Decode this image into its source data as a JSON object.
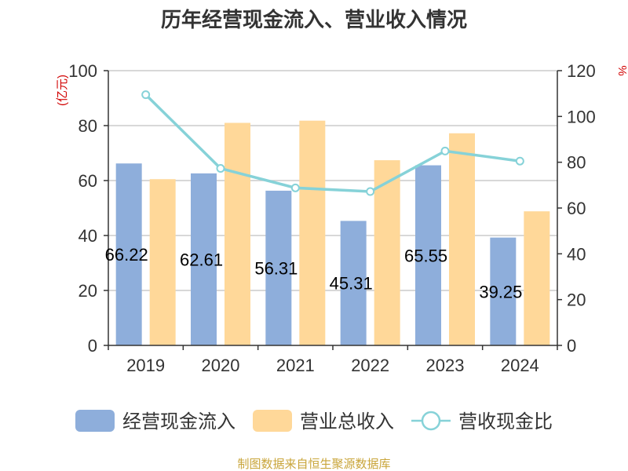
{
  "chart_data": {
    "title": "历年经营现金流入、营业收入情况",
    "type": "bar",
    "categories": [
      "2019",
      "2020",
      "2021",
      "2022",
      "2023",
      "2024"
    ],
    "series": [
      {
        "name": "经营现金流入",
        "kind": "bar",
        "axis": "left",
        "color": "#8eaedb",
        "values": [
          66.22,
          62.61,
          56.31,
          45.31,
          65.55,
          39.25
        ],
        "labels": [
          "66.22",
          "62.61",
          "56.31",
          "45.31",
          "65.55",
          "39.25"
        ]
      },
      {
        "name": "营业总收入",
        "kind": "bar",
        "axis": "left",
        "color": "#ffd899",
        "values": [
          60.5,
          81.0,
          81.8,
          67.4,
          77.2,
          48.8
        ]
      },
      {
        "name": "营收现金比",
        "kind": "line",
        "axis": "right",
        "color": "#86d2d8",
        "values": [
          109.5,
          77.3,
          68.8,
          67.2,
          84.9,
          80.5
        ]
      }
    ],
    "y_left": {
      "label": "(亿元)",
      "min": 0,
      "max": 100,
      "ticks": [
        0,
        20,
        40,
        60,
        80,
        100
      ]
    },
    "y_right": {
      "label": "%",
      "min": 0,
      "max": 120,
      "ticks": [
        0,
        20,
        40,
        60,
        80,
        100,
        120
      ]
    },
    "grid": true,
    "legend_position": "bottom",
    "source": "制图数据来自恒生聚源数据库"
  },
  "colors": {
    "title": "#333333",
    "axis": "#333333",
    "grid": "#cccccc",
    "unit": "#d10000",
    "source": "#c9a53a"
  }
}
